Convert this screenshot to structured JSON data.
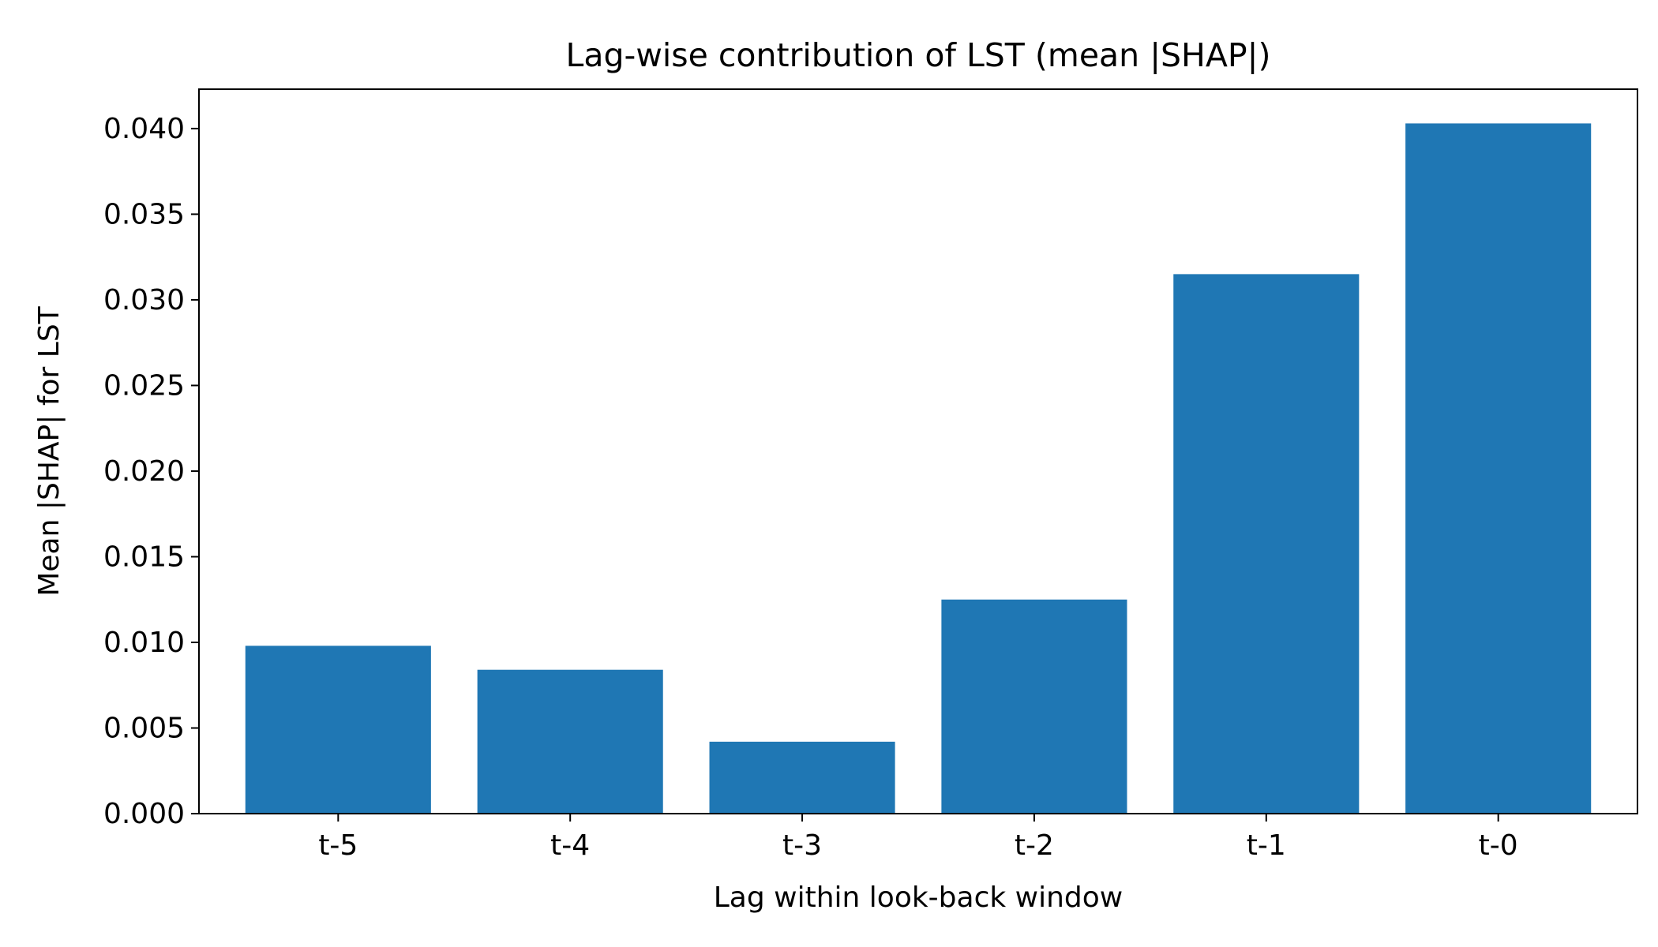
{
  "chart_data": {
    "type": "bar",
    "title": "Lag-wise contribution of LST (mean |SHAP|)",
    "xlabel": "Lag within look-back window",
    "ylabel": "Mean |SHAP| for LST",
    "categories": [
      "t-5",
      "t-4",
      "t-3",
      "t-2",
      "t-1",
      "t-0"
    ],
    "values": [
      0.0098,
      0.0084,
      0.0042,
      0.0125,
      0.0315,
      0.0403
    ],
    "ylim": [
      0,
      0.0423
    ],
    "yticks": [
      0.0,
      0.005,
      0.01,
      0.015,
      0.02,
      0.025,
      0.03,
      0.035,
      0.04
    ],
    "ytick_labels": [
      "0.000",
      "0.005",
      "0.010",
      "0.015",
      "0.020",
      "0.025",
      "0.030",
      "0.035",
      "0.040"
    ],
    "grid": false,
    "legend": "none",
    "bar_color": "#1f77b4"
  }
}
